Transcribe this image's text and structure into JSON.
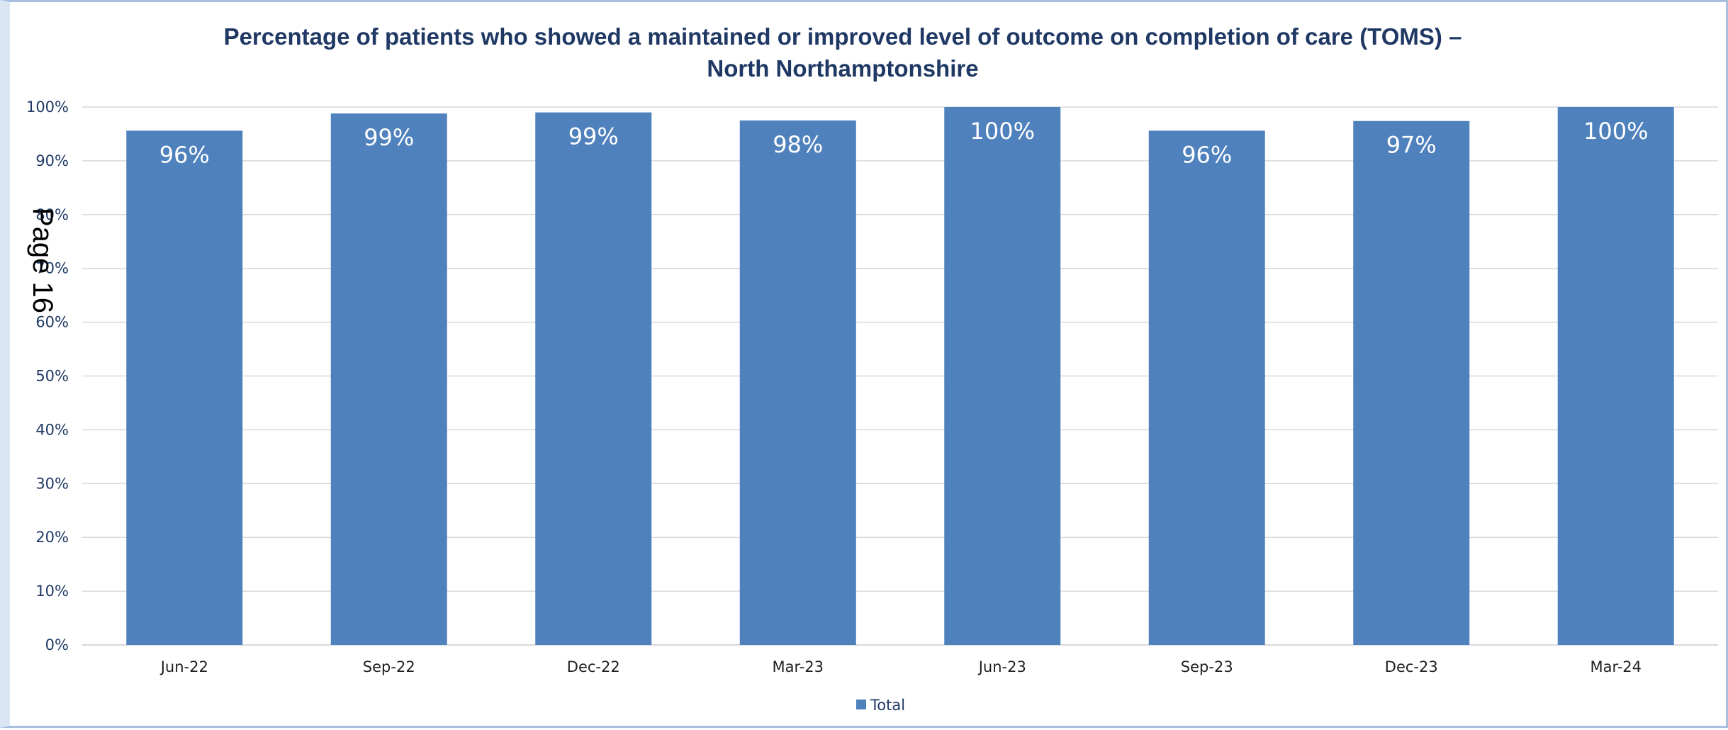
{
  "chart_data": {
    "type": "bar",
    "title_lines": [
      "Percentage of patients who showed a maintained or improved level of outcome on completion of care (TOMS) –",
      "North Northamptonshire"
    ],
    "categories": [
      "Jun-22",
      "Sep-22",
      "Dec-22",
      "Mar-23",
      "Jun-23",
      "Sep-23",
      "Dec-23",
      "Mar-24"
    ],
    "series": [
      {
        "name": "Total",
        "values": [
          95.6,
          98.8,
          99.0,
          97.5,
          100.0,
          95.6,
          97.4,
          100.0
        ],
        "labels": [
          "96%",
          "99%",
          "99%",
          "98%",
          "100%",
          "96%",
          "97%",
          "100%"
        ],
        "color": "#4f81bd"
      }
    ],
    "ylim": [
      0,
      100
    ],
    "yticks": [
      "0%",
      "10%",
      "20%",
      "30%",
      "40%",
      "50%",
      "60%",
      "70%",
      "80%",
      "90%",
      "100%"
    ],
    "grid": true,
    "legend": "bottom-center"
  },
  "page_stamp": "Page 16",
  "colors": {
    "title": "#1f3864",
    "bar": "#4f81bd",
    "grid": "#d9d9d9"
  }
}
